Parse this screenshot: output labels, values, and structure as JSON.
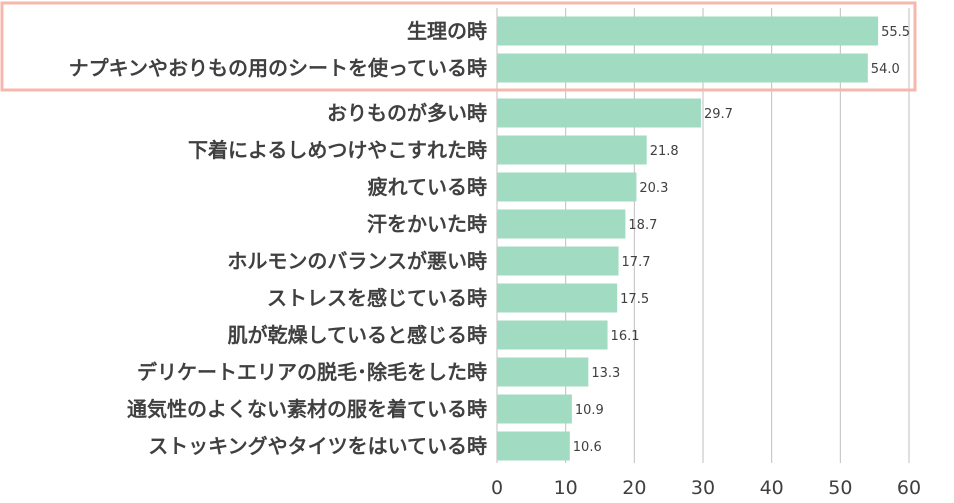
{
  "chart_data": {
    "type": "bar",
    "orientation": "horizontal",
    "categories": [
      "生理の時",
      "ナプキンやおりもの用のシートを使っている時",
      "おりものが多い時",
      "下着によるしめつけやこすれた時",
      "疲れている時",
      "汗をかいた時",
      "ホルモンのバランスが悪い時",
      "ストレスを感じている時",
      "肌が乾燥していると感じる時",
      "デリケートエリアの脱毛･除毛をした時",
      "通気性のよくない素材の服を着ている時",
      "ストッキングやタイツをはいている時"
    ],
    "values": [
      55.5,
      54.0,
      29.7,
      21.8,
      20.3,
      18.7,
      17.7,
      17.5,
      16.1,
      13.3,
      10.9,
      10.6
    ],
    "value_labels": [
      "55.5",
      "54.0",
      "29.7",
      "21.8",
      "20.3",
      "18.7",
      "17.7",
      "17.5",
      "16.1",
      "13.3",
      "10.9",
      "10.6"
    ],
    "xlim": [
      0,
      60
    ],
    "x_ticks": [
      "0",
      "10",
      "20",
      "30",
      "40",
      "50",
      "60"
    ],
    "title": "",
    "xlabel": "",
    "ylabel": "",
    "grid": "vertical",
    "highlighted_categories": [
      0,
      1
    ],
    "bar_color": "#a0dbc2",
    "highlight_border_color": "#f6b8ad",
    "grid_color": "#bfbfbf",
    "text_color": "#404040"
  }
}
